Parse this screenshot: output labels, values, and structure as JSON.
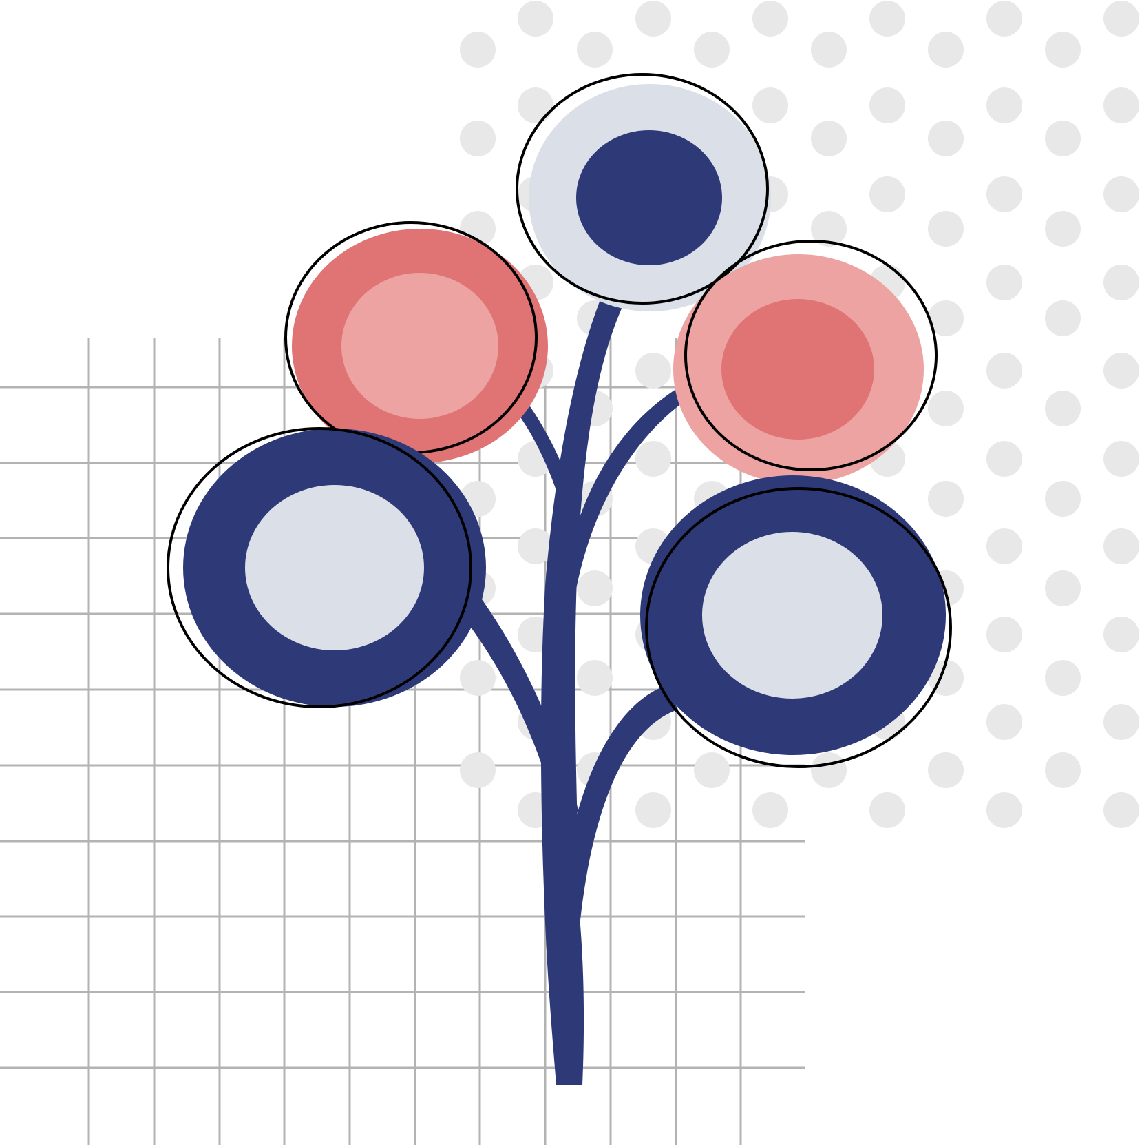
{
  "illustration": {
    "subject": "stylized-flower-tree",
    "colors": {
      "background": "#ffffff",
      "grid_line": "#b3b3b3",
      "dot": "#e8e8e8",
      "navy": "#2e3a78",
      "pale_blue": "#dadfe8",
      "coral": "#e07373",
      "light_coral": "#eca3a2",
      "outline": "#000000"
    }
  }
}
